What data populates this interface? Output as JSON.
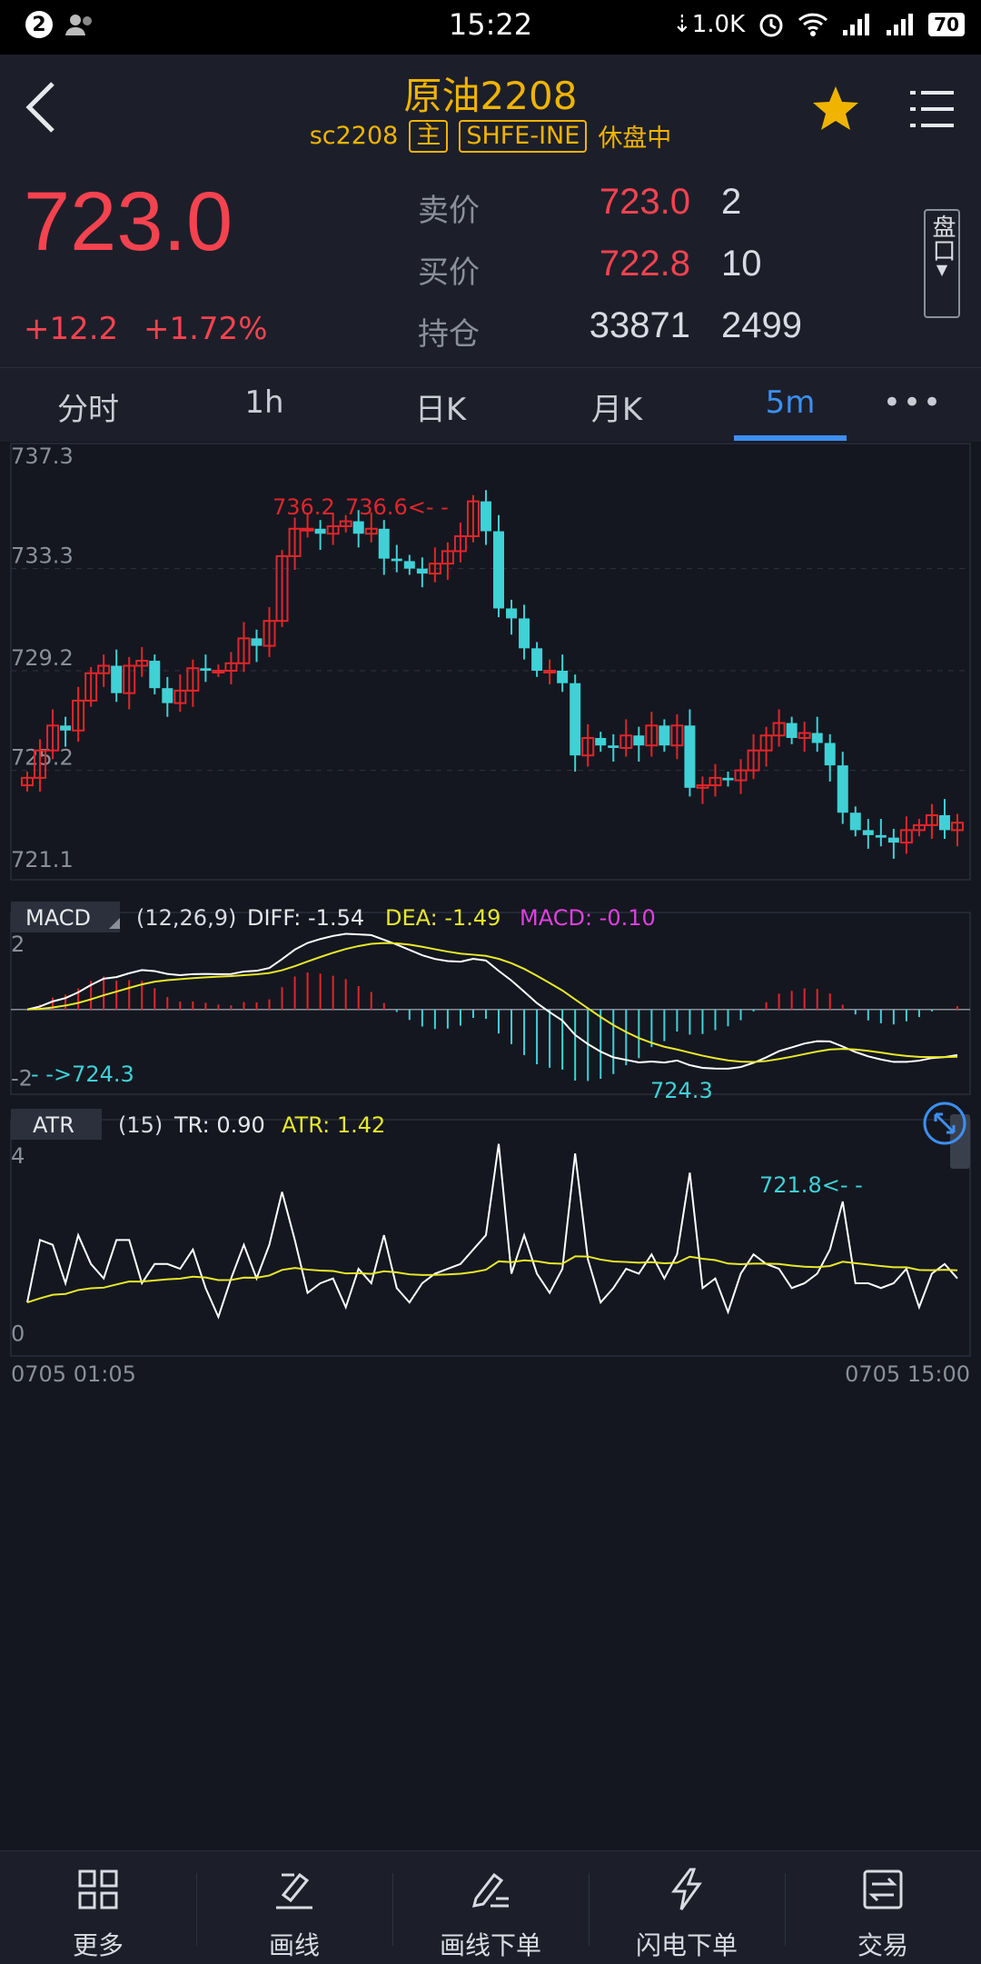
{
  "status_bar": {
    "time": "15:22",
    "notif_count": "2",
    "net_speed": "1.0K",
    "battery": "70"
  },
  "header": {
    "title": "原油2208",
    "code": "sc2208",
    "main_tag": "主",
    "exchange": "SHFE-INE",
    "status": "休盘中"
  },
  "quote": {
    "last_price": "723.0",
    "change": "+12.2",
    "change_pct": "+1.72%",
    "ask_label": "卖价",
    "ask_price": "723.0",
    "ask_vol": "2",
    "bid_label": "买价",
    "bid_price": "722.8",
    "bid_vol": "10",
    "oi_label": "持仓",
    "oi": "33871",
    "oi_change": "2499",
    "pankou": "盘口"
  },
  "tabs": [
    "分时",
    "1h",
    "日K",
    "月K",
    "5m",
    "•••"
  ],
  "active_tab": "5m",
  "colors": {
    "up": "#e0262b",
    "down": "#3fd1d6",
    "gold": "#f0b400",
    "accent": "#3d8ff0"
  },
  "chart_data": {
    "type": "candlestick",
    "price_axis": {
      "ticks": [
        "737.3",
        "733.3",
        "729.2",
        "725.2",
        "721.1"
      ],
      "ylim": [
        721.1,
        737.3
      ]
    },
    "x_start": "0705 01:05",
    "x_end": "0705 15:00",
    "annotations": {
      "high_left": "736.2",
      "high_right": "736.6<- -",
      "low_left": "- ->724.3",
      "mid_low": "724.3",
      "low_right": "721.8<- -"
    },
    "closes": [
      724.9,
      726.0,
      727.0,
      726.8,
      728.0,
      729.1,
      729.4,
      728.3,
      729.4,
      729.6,
      728.5,
      727.9,
      728.4,
      729.3,
      729.2,
      729.2,
      729.5,
      730.5,
      730.2,
      731.2,
      733.8,
      734.9,
      734.9,
      734.7,
      735.0,
      735.2,
      734.7,
      734.9,
      733.7,
      733.6,
      733.3,
      733.1,
      733.5,
      734.0,
      734.6,
      736.0,
      734.8,
      731.7,
      731.3,
      730.1,
      729.2,
      729.2,
      728.7,
      725.8,
      726.5,
      726.2,
      726.1,
      726.6,
      726.2,
      727.0,
      726.2,
      727.0,
      724.5,
      724.6,
      724.9,
      724.8,
      725.2,
      726.0,
      726.6,
      727.1,
      726.5,
      726.7,
      726.3,
      725.4,
      723.5,
      722.8,
      722.6,
      722.5,
      722.3,
      722.8,
      723.0,
      723.4,
      722.8,
      723.1
    ],
    "macd": {
      "params": "(12,26,9)",
      "diff_label": "DIFF: -1.54",
      "dea_label": "DEA: -1.49",
      "macd_label": "MACD: -0.10",
      "ticks": [
        "2",
        "-2"
      ],
      "ylim": [
        -2.2,
        2.4
      ]
    },
    "atr": {
      "params": "(15)",
      "tr_label": "TR: 0.90",
      "atr_label": "ATR: 1.42",
      "ticks": [
        "4",
        "0"
      ],
      "ylim": [
        -0.2,
        4.3
      ]
    }
  },
  "bottom_nav": [
    {
      "label": "更多",
      "icon": "grid-icon"
    },
    {
      "label": "画线",
      "icon": "draw-line-icon"
    },
    {
      "label": "画线下单",
      "icon": "draw-order-icon"
    },
    {
      "label": "闪电下单",
      "icon": "lightning-icon"
    },
    {
      "label": "交易",
      "icon": "trade-icon"
    }
  ]
}
